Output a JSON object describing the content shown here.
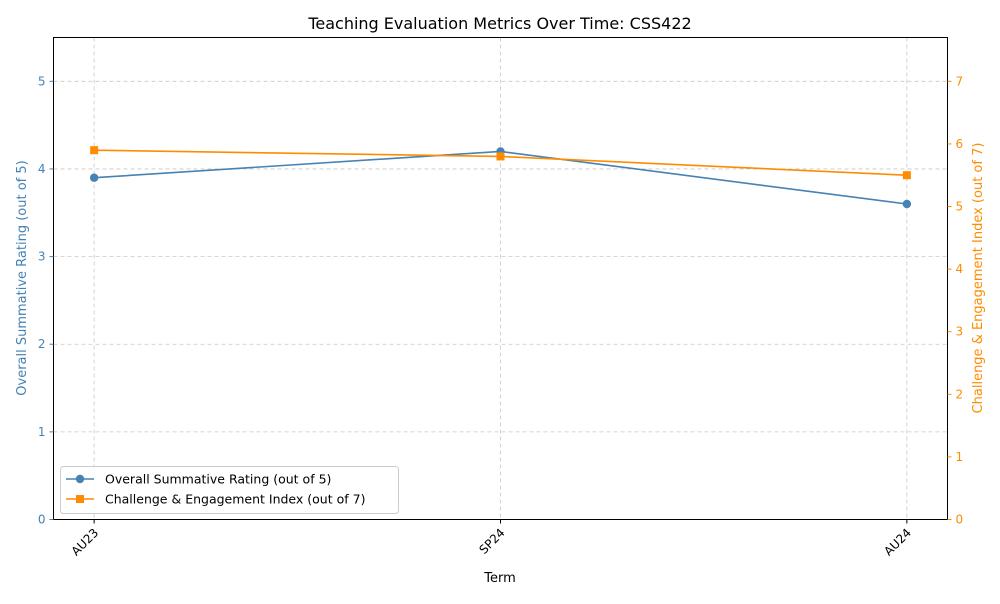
{
  "chart_data": {
    "type": "line",
    "title": "Teaching Evaluation Metrics Over Time: CSS422",
    "xlabel": "Term",
    "categories": [
      "AU23",
      "SP24",
      "AU24"
    ],
    "xlim": [
      -0.1,
      2.1
    ],
    "grid": true,
    "legend_position": "lower-left",
    "axes": {
      "left": {
        "label": "Overall Summative Rating (out of 5)",
        "ylim": [
          0,
          5.5
        ],
        "ticks": [
          0,
          1,
          2,
          3,
          4,
          5
        ],
        "color": "#4682b4"
      },
      "right": {
        "label": "Challenge & Engagement Index (out of 7)",
        "ylim": [
          0,
          7.7
        ],
        "ticks": [
          0,
          1,
          2,
          3,
          4,
          5,
          6,
          7
        ],
        "color": "#ff8c00"
      }
    },
    "series": [
      {
        "name": "Overall Summative Rating (out of 5)",
        "axis": "left",
        "marker": "circle",
        "color": "#4682b4",
        "values": [
          3.9,
          4.2,
          3.6
        ]
      },
      {
        "name": "Challenge & Engagement Index (out of 7)",
        "axis": "right",
        "marker": "square",
        "color": "#ff8c00",
        "values": [
          5.9,
          5.8,
          5.5
        ]
      }
    ]
  }
}
